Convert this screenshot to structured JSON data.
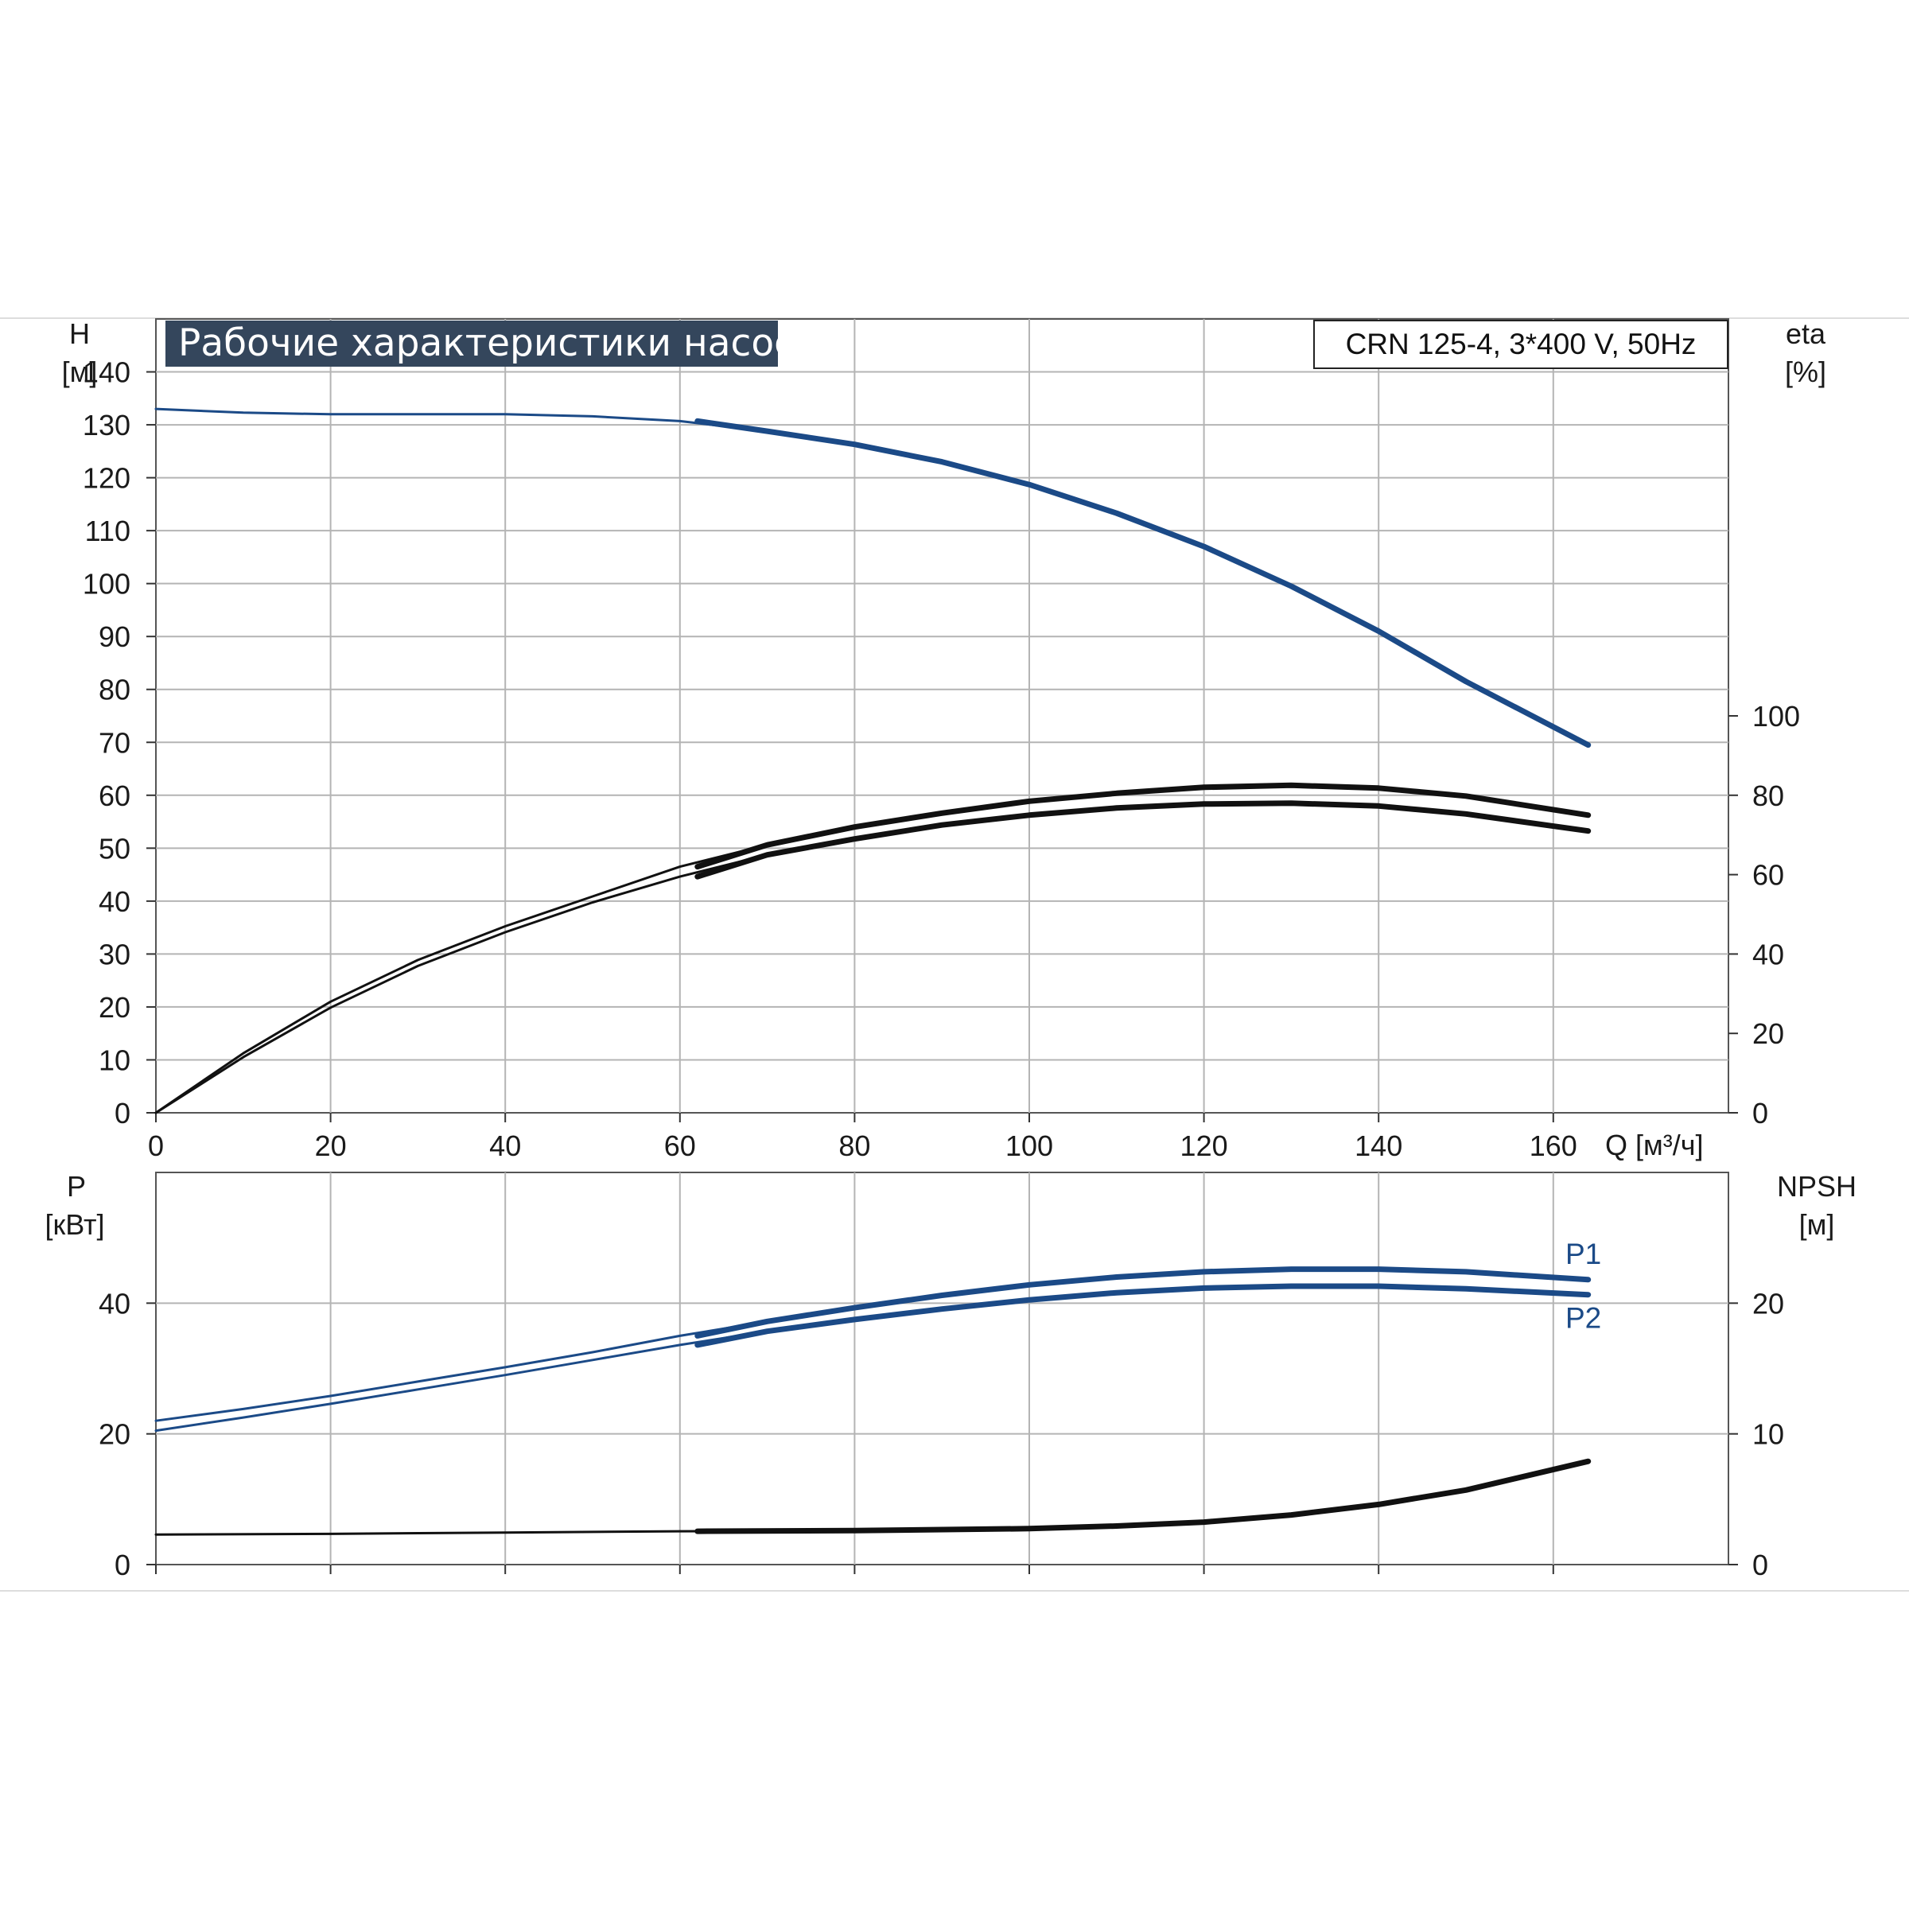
{
  "chart_data": [
    {
      "type": "line",
      "title": "Рабочие характеристики насоса",
      "subtitle": "CRN 125-4, 3*400 V, 50Hz",
      "xlabel": "Q [м³/ч]",
      "xlim": [
        0,
        180
      ],
      "x_ticks": [
        "0",
        "20",
        "40",
        "60",
        "80",
        "100",
        "120",
        "140",
        "160"
      ],
      "left_axis": {
        "label": "H",
        "unit": "[м]",
        "lim": [
          0,
          150
        ],
        "ticks": [
          "0",
          "10",
          "20",
          "30",
          "40",
          "50",
          "60",
          "70",
          "80",
          "90",
          "100",
          "110",
          "120",
          "130",
          "140"
        ]
      },
      "right_axis": {
        "label": "eta",
        "unit": "[%]",
        "lim": [
          0,
          200
        ],
        "ticks": [
          "0",
          "20",
          "40",
          "60",
          "80",
          "100"
        ]
      },
      "grid": true,
      "series": [
        {
          "axis": "left",
          "color": "#1b4a87",
          "x": [
            0,
            10,
            20,
            30,
            40,
            50,
            60,
            70,
            80,
            90,
            100,
            110,
            120,
            130,
            140,
            150,
            164
          ],
          "y": [
            133,
            132.3,
            132,
            132,
            132,
            131.6,
            130.7,
            128.8,
            126.3,
            123,
            118.7,
            113.3,
            107,
            99.5,
            91,
            81.5,
            69.5
          ]
        },
        {
          "axis": "right",
          "color": "#111111",
          "x": [
            0,
            10,
            20,
            30,
            40,
            50,
            60,
            70,
            80,
            90,
            100,
            110,
            120,
            130,
            140,
            150,
            164
          ],
          "y": [
            0,
            15,
            28,
            38.5,
            47,
            54.5,
            62,
            67.5,
            72,
            75.5,
            78.5,
            80.5,
            82,
            82.5,
            81.8,
            79.8,
            75
          ]
        },
        {
          "axis": "right",
          "color": "#111111",
          "x": [
            0,
            10,
            20,
            30,
            40,
            50,
            60,
            70,
            80,
            90,
            100,
            110,
            120,
            130,
            140,
            150,
            164
          ],
          "y": [
            0,
            14,
            26.5,
            37,
            45.5,
            53,
            59.5,
            65,
            69,
            72.5,
            75,
            76.8,
            77.8,
            78,
            77.3,
            75.3,
            71
          ]
        }
      ]
    },
    {
      "type": "line",
      "xlim": [
        0,
        180
      ],
      "left_axis": {
        "label": "P",
        "unit": "[кВт]",
        "lim": [
          0,
          60
        ],
        "ticks": [
          "0",
          "20",
          "40"
        ]
      },
      "right_axis": {
        "label": "NPSH",
        "unit": "[м]",
        "lim": [
          0,
          30
        ],
        "ticks": [
          "0",
          "10",
          "20"
        ]
      },
      "grid": true,
      "series": [
        {
          "name": "P1",
          "axis": "left",
          "color": "#1b4a87",
          "x": [
            0,
            10,
            20,
            30,
            40,
            50,
            60,
            70,
            80,
            90,
            100,
            110,
            120,
            130,
            140,
            150,
            164
          ],
          "y": [
            22,
            23.8,
            25.8,
            28,
            30.2,
            32.5,
            35,
            37.2,
            39.3,
            41.2,
            42.8,
            44,
            44.8,
            45.2,
            45.2,
            44.8,
            43.6
          ]
        },
        {
          "name": "P2",
          "axis": "left",
          "color": "#1b4a87",
          "x": [
            0,
            10,
            20,
            30,
            40,
            50,
            60,
            70,
            80,
            90,
            100,
            110,
            120,
            130,
            140,
            150,
            164
          ],
          "y": [
            20.5,
            22.5,
            24.6,
            26.8,
            29,
            31.3,
            33.6,
            35.7,
            37.5,
            39.1,
            40.5,
            41.6,
            42.3,
            42.6,
            42.6,
            42.2,
            41.3
          ]
        },
        {
          "axis": "right",
          "color": "#111111",
          "x": [
            0,
            20,
            40,
            60,
            80,
            100,
            110,
            120,
            130,
            140,
            150,
            164
          ],
          "y": [
            2.3,
            2.35,
            2.45,
            2.55,
            2.6,
            2.75,
            2.95,
            3.25,
            3.8,
            4.6,
            5.7,
            7.9
          ]
        }
      ]
    }
  ]
}
